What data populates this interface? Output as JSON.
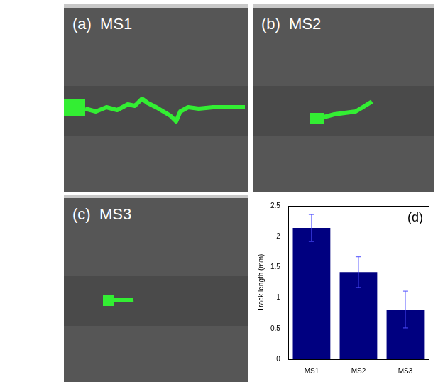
{
  "panels": [
    {
      "label": "(a)",
      "title": "MS1"
    },
    {
      "label": "(b)",
      "title": "MS2"
    },
    {
      "label": "(c)",
      "title": "MS3"
    }
  ],
  "chart_data": {
    "type": "bar",
    "annotation": "(d)",
    "ylabel": "Track length (mm)",
    "categories": [
      "MS1",
      "MS2",
      "MS3"
    ],
    "values": [
      2.14,
      1.42,
      0.81
    ],
    "errors": [
      0.22,
      0.25,
      0.3
    ],
    "color": "#000080",
    "ylim": [
      0,
      2.5
    ],
    "yticks": [
      0,
      0.5,
      1,
      1.5,
      2,
      2.5
    ],
    "grid": false
  }
}
